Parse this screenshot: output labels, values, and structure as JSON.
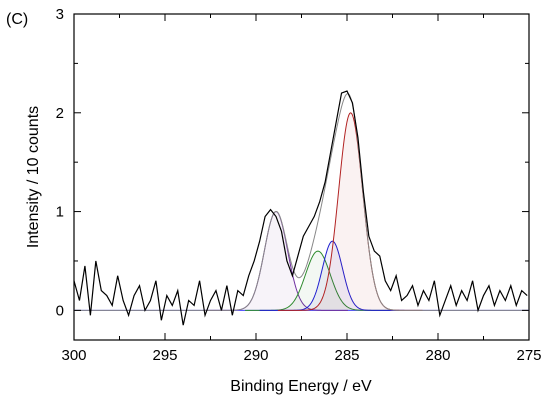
{
  "chart_data": {
    "type": "line",
    "panel_label": "(C)",
    "title": "",
    "xlabel": "Binding Energy / eV",
    "ylabel": "Intensity / 10 counts",
    "xlim": [
      300,
      275
    ],
    "ylim": [
      -0.3,
      3
    ],
    "x_reversed": true,
    "grid": false,
    "legend": "none",
    "xticks": [
      300,
      295,
      290,
      285,
      280,
      275
    ],
    "yticks": [
      0,
      1,
      2,
      3
    ],
    "baseline": 0,
    "peaks": [
      {
        "name": "",
        "center": 288.9,
        "height": 1.0,
        "fwhm": 1.5,
        "color": "#7030a0"
      },
      {
        "name": "",
        "center": 286.6,
        "height": 0.6,
        "fwhm": 1.6,
        "color": "#2e8b2e"
      },
      {
        "name": "",
        "center": 285.8,
        "height": 0.7,
        "fwhm": 1.3,
        "color": "#2020d0"
      },
      {
        "name": "",
        "center": 284.8,
        "height": 2.0,
        "fwhm": 1.55,
        "color": "#b22222"
      }
    ],
    "series": [
      {
        "name": "",
        "color": "#000000",
        "x": [
          300.0,
          299.7,
          299.4,
          299.1,
          298.8,
          298.5,
          298.2,
          297.9,
          297.6,
          297.3,
          297.0,
          296.7,
          296.4,
          296.1,
          295.8,
          295.5,
          295.2,
          294.9,
          294.6,
          294.3,
          294.0,
          293.7,
          293.4,
          293.1,
          292.8,
          292.5,
          292.2,
          291.9,
          291.6,
          291.3,
          291.0,
          290.7,
          290.4,
          290.1,
          289.8,
          289.5,
          289.2,
          288.9,
          288.6,
          288.3,
          288.0,
          287.7,
          287.4,
          287.1,
          286.8,
          286.5,
          286.2,
          285.9,
          285.6,
          285.3,
          285.0,
          284.7,
          284.4,
          284.1,
          283.8,
          283.5,
          283.2,
          282.9,
          282.6,
          282.3,
          282.0,
          281.7,
          281.4,
          281.1,
          280.8,
          280.5,
          280.2,
          279.9,
          279.6,
          279.3,
          279.0,
          278.7,
          278.4,
          278.1,
          277.8,
          277.5,
          277.2,
          276.9,
          276.6,
          276.3,
          276.0,
          275.7,
          275.4,
          275.1
        ],
        "values": [
          0.3,
          0.1,
          0.45,
          -0.05,
          0.5,
          0.2,
          0.15,
          0.05,
          0.35,
          0.1,
          -0.05,
          0.15,
          0.25,
          0.0,
          0.1,
          0.3,
          -0.1,
          0.15,
          0.05,
          0.2,
          -0.15,
          0.1,
          0.05,
          0.3,
          -0.05,
          0.1,
          0.2,
          0.0,
          0.25,
          -0.05,
          0.2,
          0.15,
          0.35,
          0.5,
          0.7,
          0.95,
          1.02,
          0.95,
          0.8,
          0.5,
          0.35,
          0.55,
          0.75,
          0.85,
          0.95,
          1.1,
          1.3,
          1.6,
          1.9,
          2.2,
          2.22,
          2.1,
          1.75,
          1.2,
          0.75,
          0.6,
          0.55,
          0.3,
          0.2,
          0.35,
          0.1,
          0.15,
          0.25,
          0.05,
          0.2,
          0.1,
          0.3,
          -0.05,
          0.1,
          0.25,
          0.05,
          0.2,
          0.1,
          0.3,
          0.0,
          0.15,
          0.25,
          0.05,
          0.2,
          0.1,
          0.25,
          0.05,
          0.2,
          0.15
        ]
      }
    ]
  }
}
